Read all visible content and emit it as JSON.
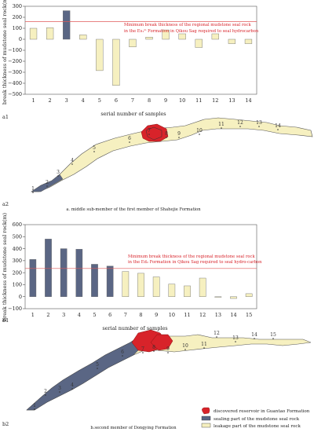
{
  "panels": [
    {
      "id": "a1",
      "label": "a1",
      "chart_data": {
        "type": "bar",
        "categories": [
          "1",
          "2",
          "3",
          "4",
          "5",
          "6",
          "7",
          "8",
          "9",
          "10",
          "11",
          "12",
          "13",
          "14"
        ],
        "values": [
          100,
          105,
          260,
          40,
          -285,
          -420,
          -70,
          20,
          85,
          50,
          -75,
          50,
          -40,
          -40
        ],
        "sealing": [
          false,
          false,
          true,
          false,
          false,
          false,
          false,
          false,
          false,
          false,
          false,
          false,
          false,
          false
        ],
        "reference_value": 160,
        "reference_label_lines": [
          "Minimum break thickness of the regional mudstone seal rock",
          "in the Es₁ᵐ Formation in Qikou Sag required to seal hydrocarbon"
        ],
        "ylim": [
          -500,
          300
        ],
        "yticks": [
          "300",
          "200",
          "100",
          "0",
          "−100",
          "−200",
          "−300",
          "−400",
          "−500"
        ],
        "xlabel": "serial number of samples",
        "ylabel": "break thickness of mudstone seal rock(m)",
        "colors": {
          "sealing": "#5a6684",
          "leakage": "#f6f0c0",
          "reference": "#e05a5a"
        }
      }
    },
    {
      "id": "b1",
      "label": "b1",
      "chart_data": {
        "type": "bar",
        "categories": [
          "1",
          "2",
          "3",
          "4",
          "5",
          "6",
          "7",
          "8",
          "9",
          "10",
          "11",
          "12",
          "13",
          "14",
          "15"
        ],
        "values": [
          310,
          480,
          400,
          395,
          270,
          255,
          210,
          195,
          165,
          105,
          90,
          155,
          0,
          -15,
          25
        ],
        "sealing": [
          true,
          true,
          true,
          true,
          true,
          true,
          false,
          false,
          false,
          false,
          false,
          false,
          false,
          false,
          false
        ],
        "reference_value": 235,
        "reference_label_lines": [
          "Minimum break thickness of the regional mudstone seal rock",
          "in the Ed₂ Formation in Qikou Sag required to seal hydro-carbon"
        ],
        "ylim": [
          -100,
          600
        ],
        "yticks": [
          "600",
          "500",
          "400",
          "300",
          "200",
          "100",
          "0",
          "−100"
        ],
        "xlabel": "serial number of samples",
        "ylabel": "break thickness of mudstone seal rock(m)",
        "colors": {
          "sealing": "#5a6684",
          "leakage": "#f6f0c0",
          "reference": "#e05a5a"
        }
      }
    }
  ],
  "maps": {
    "a2": {
      "label": "a2",
      "caption": "a. middle sub-member of the first member of Shahejie Formation",
      "numbers": [
        "1",
        "2",
        "3",
        "4",
        "5",
        "6",
        "7",
        "8",
        "9",
        "10",
        "11",
        "12",
        "13",
        "14"
      ]
    },
    "b2": {
      "label": "b2",
      "caption": "b.second member of Dongying Formation",
      "numbers": [
        "1",
        "2",
        "3",
        "4",
        "5",
        "6",
        "7",
        "8",
        "9",
        "10",
        "11",
        "12",
        "13",
        "14",
        "15"
      ]
    }
  },
  "legend": {
    "items": [
      {
        "label": "discovered reservoir in Guantao Formation",
        "color": "#d8232a"
      },
      {
        "label": "sealing part of the mudstone seal rock",
        "color": "#5a6684"
      },
      {
        "label": "leakage part of the mudstone seal rock",
        "color": "#f6f0c0"
      }
    ]
  }
}
